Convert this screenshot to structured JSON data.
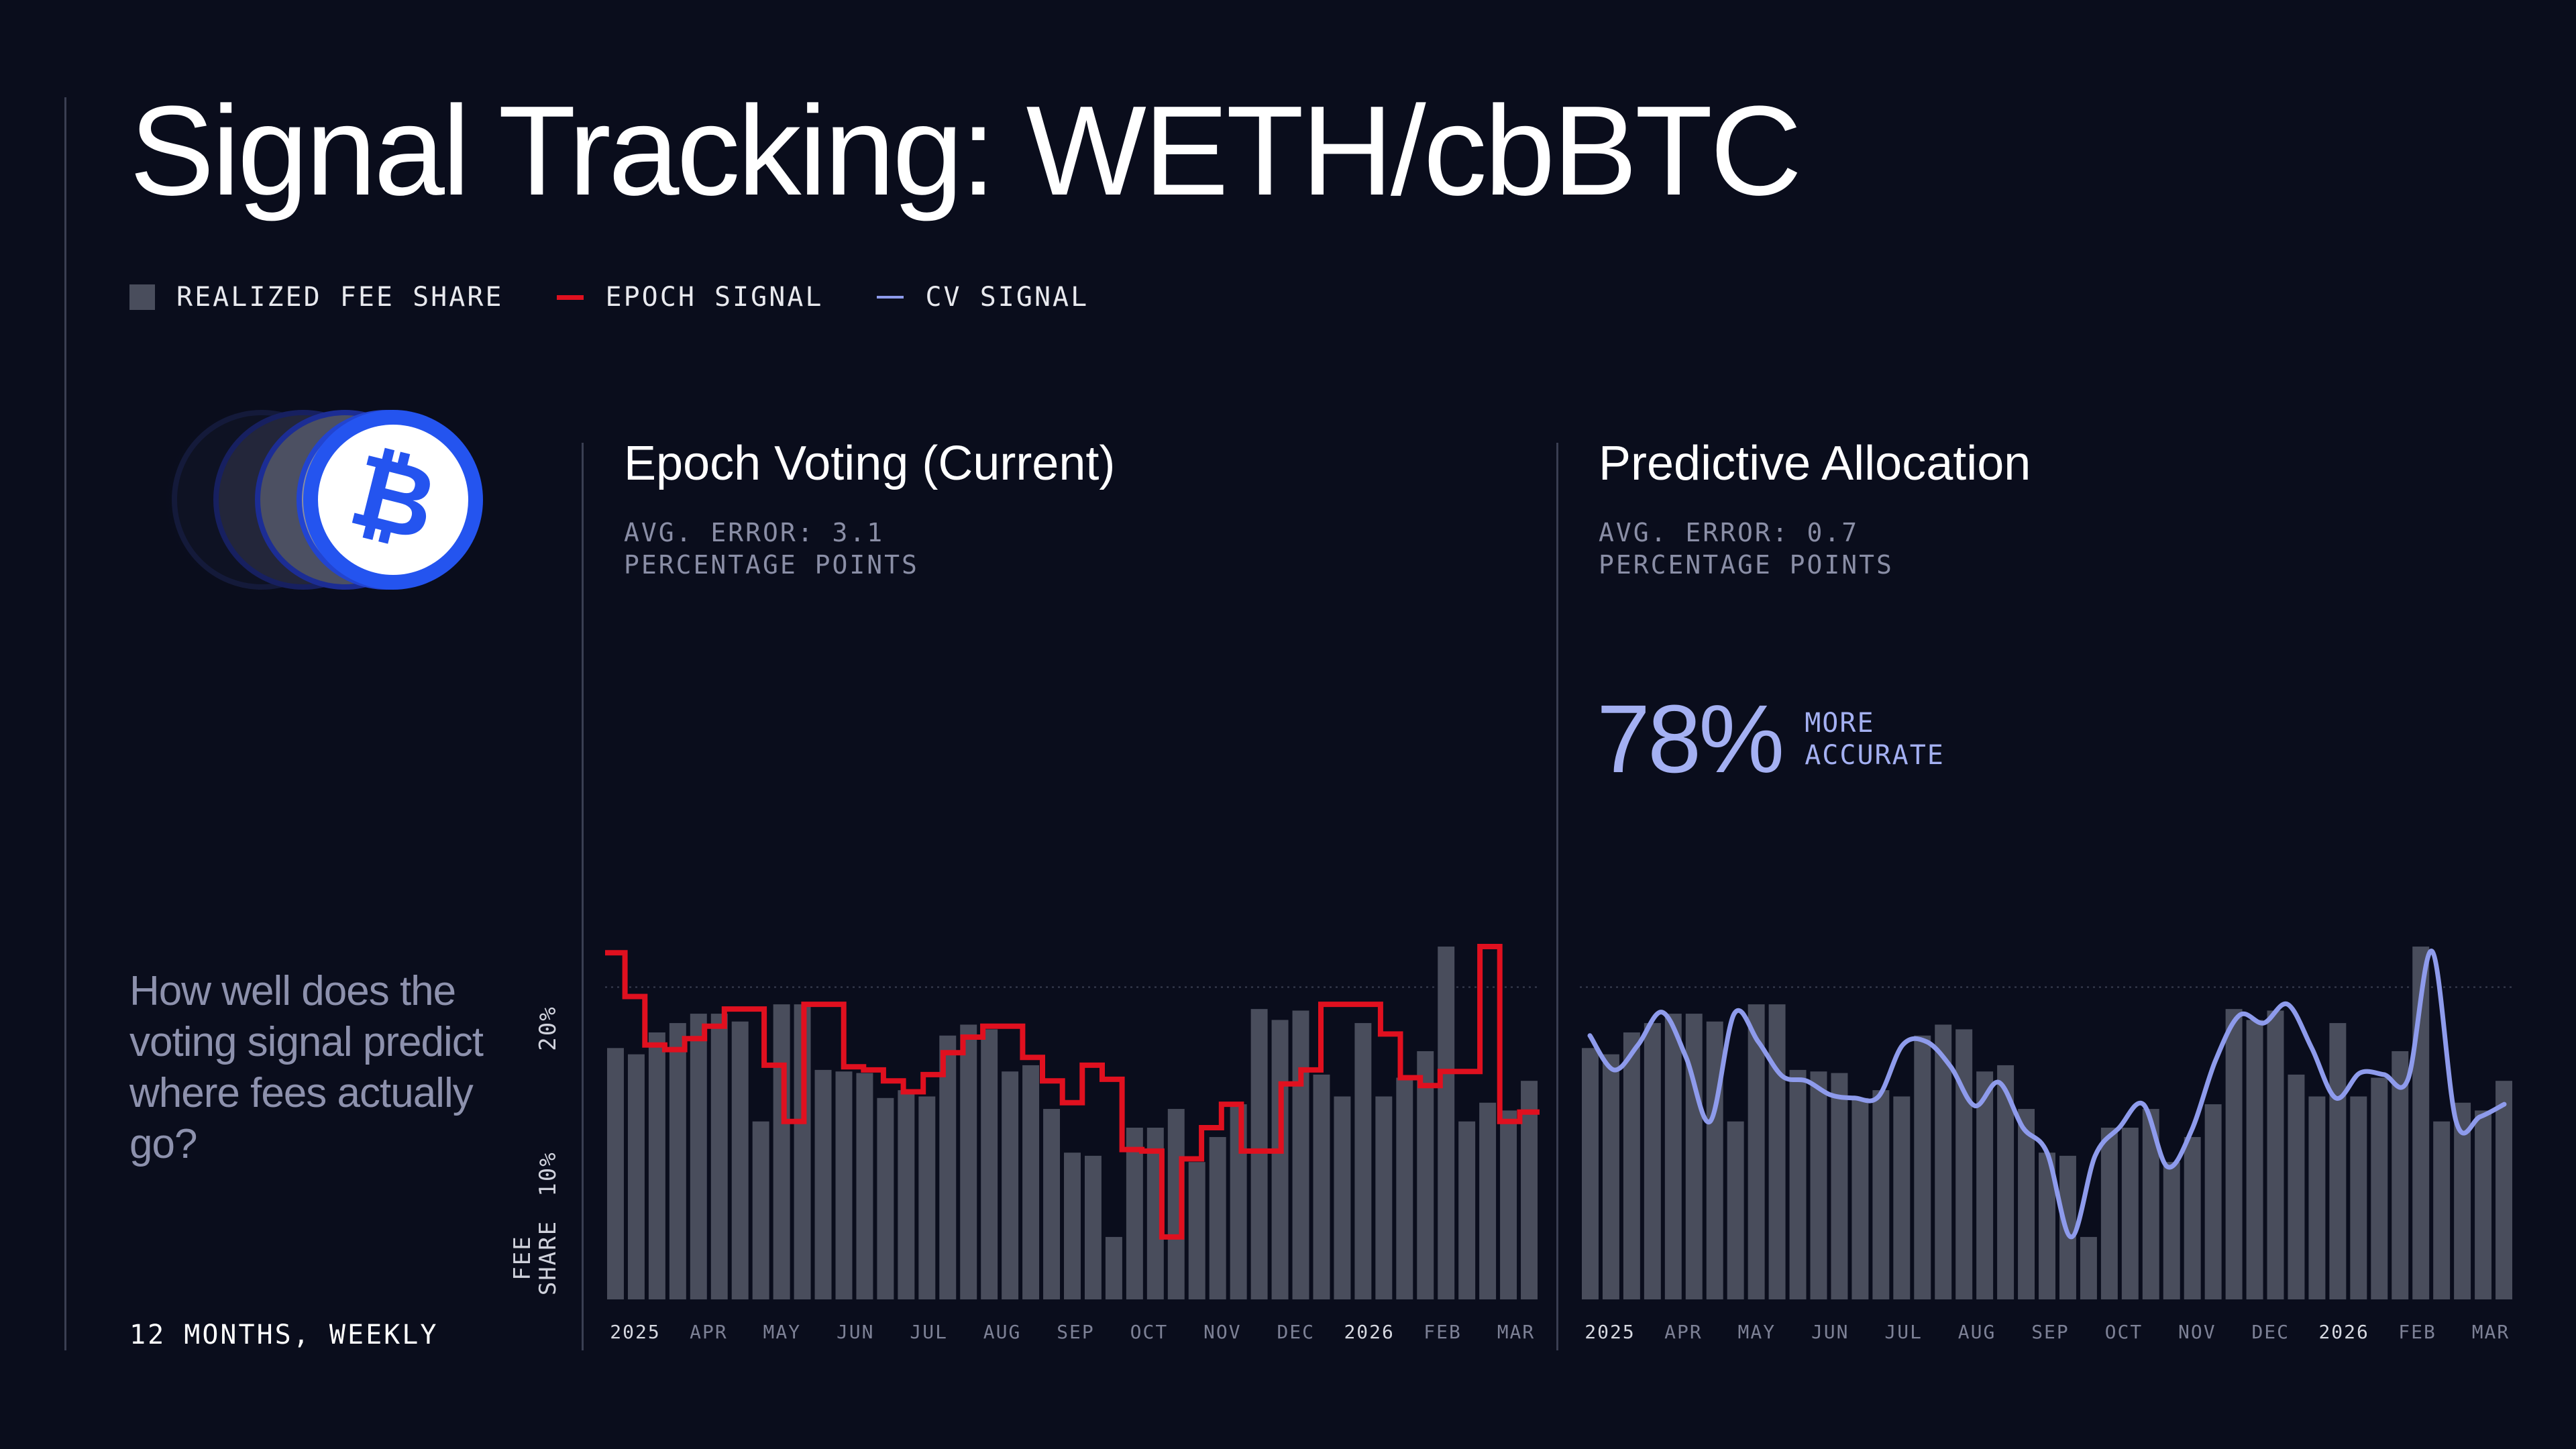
{
  "title": "Signal Tracking: WETH/cbBTC",
  "legend": [
    {
      "label": "REALIZED FEE SHARE",
      "swatch": "bar",
      "color": "#494d5c"
    },
    {
      "label": "EPOCH SIGNAL",
      "swatch": "line",
      "color": "#e0101f"
    },
    {
      "label": "CV SIGNAL",
      "swatch": "thin-line",
      "color": "#8e9bec"
    }
  ],
  "coin_icon": "bitcoin-icon",
  "question": "How well does the voting signal predict where fees actually go?",
  "period": "12 MONTHS, WEEKLY",
  "left_panel": {
    "title": "Epoch Voting (Current)",
    "error_line1": "AVG. ERROR: 3.1",
    "error_line2": "PERCENTAGE POINTS"
  },
  "right_panel": {
    "title": "Predictive Allocation",
    "error_line1": "AVG. ERROR: 0.7",
    "error_line2": "PERCENTAGE POINTS",
    "accuracy_value": "78%",
    "accuracy_line1": "MORE",
    "accuracy_line2": "ACCURATE"
  },
  "colors": {
    "background": "#0a0d1c",
    "bar": "#494d5c",
    "epoch": "#e0101f",
    "cv": "#8e9bec",
    "accent": "#a4b0f2",
    "coin_blue": "#2454ef"
  },
  "chart_data": [
    {
      "type": "bar",
      "title": "Epoch Voting (Current)",
      "x_tick_labels": [
        "2025",
        "APR",
        "MAY",
        "JUN",
        "JUL",
        "AUG",
        "SEP",
        "OCT",
        "NOV",
        "DEC",
        "2026",
        "FEB",
        "MAR"
      ],
      "ylabel": "FEE SHARE",
      "y_tick_labels": [
        "10%",
        "20%"
      ],
      "ylim": [
        0,
        22
      ],
      "grid": "dotted line at 20%",
      "series": [
        {
          "name": "REALIZED FEE SHARE",
          "type": "bar",
          "values": [
            16.1,
            15.7,
            17.1,
            17.7,
            18.3,
            18.3,
            17.8,
            11.4,
            18.9,
            18.9,
            14.7,
            14.6,
            14.5,
            12.9,
            13.4,
            13.0,
            16.9,
            17.6,
            17.3,
            14.6,
            15.0,
            12.2,
            9.4,
            9.2,
            4.0,
            11.0,
            11.0,
            12.2,
            8.8,
            10.4,
            12.5,
            18.6,
            17.9,
            18.5,
            14.4,
            13.0,
            17.7,
            13.0,
            14.2,
            15.9,
            22.6,
            11.4,
            12.6,
            12.1,
            14.0
          ]
        },
        {
          "name": "EPOCH SIGNAL",
          "type": "line",
          "shape": "step",
          "values": [
            22.2,
            19.4,
            16.3,
            16.0,
            16.7,
            17.5,
            18.6,
            18.6,
            15.0,
            11.4,
            18.9,
            18.9,
            14.9,
            14.7,
            14.0,
            13.3,
            14.4,
            15.8,
            16.8,
            17.5,
            17.5,
            15.5,
            14.0,
            12.6,
            15.0,
            14.1,
            9.6,
            9.5,
            4.0,
            9.0,
            11.0,
            12.5,
            9.5,
            9.5,
            13.8,
            14.7,
            18.9,
            18.9,
            18.9,
            17.0,
            14.2,
            13.7,
            14.6,
            14.6,
            22.6,
            11.4,
            12.0
          ]
        }
      ]
    },
    {
      "type": "bar",
      "title": "Predictive Allocation",
      "x_tick_labels": [
        "2025",
        "APR",
        "MAY",
        "JUN",
        "JUL",
        "AUG",
        "SEP",
        "OCT",
        "NOV",
        "DEC",
        "2026",
        "FEB",
        "MAR"
      ],
      "ylim": [
        0,
        22
      ],
      "grid": "dotted line at 20%",
      "series": [
        {
          "name": "REALIZED FEE SHARE",
          "type": "bar",
          "values": [
            16.1,
            15.7,
            17.1,
            17.7,
            18.3,
            18.3,
            17.8,
            11.4,
            18.9,
            18.9,
            14.7,
            14.6,
            14.5,
            12.9,
            13.4,
            13.0,
            16.9,
            17.6,
            17.3,
            14.6,
            15.0,
            12.2,
            9.4,
            9.2,
            4.0,
            11.0,
            11.0,
            12.2,
            8.8,
            10.4,
            12.5,
            18.6,
            17.9,
            18.5,
            14.4,
            13.0,
            17.7,
            13.0,
            14.2,
            15.9,
            22.6,
            11.4,
            12.6,
            12.1,
            14.0
          ]
        },
        {
          "name": "CV SIGNAL",
          "type": "line",
          "shape": "smooth",
          "values": [
            16.9,
            14.7,
            16.3,
            18.4,
            15.5,
            11.4,
            18.3,
            16.5,
            14.3,
            14.0,
            13.1,
            12.9,
            13.0,
            16.3,
            16.5,
            14.9,
            12.4,
            13.9,
            11.0,
            9.4,
            4.0,
            9.2,
            11.0,
            12.5,
            8.5,
            10.8,
            15.3,
            18.2,
            17.7,
            18.9,
            16.1,
            12.9,
            14.5,
            14.4,
            14.1,
            22.3,
            11.4,
            11.7,
            12.5
          ]
        }
      ]
    }
  ]
}
